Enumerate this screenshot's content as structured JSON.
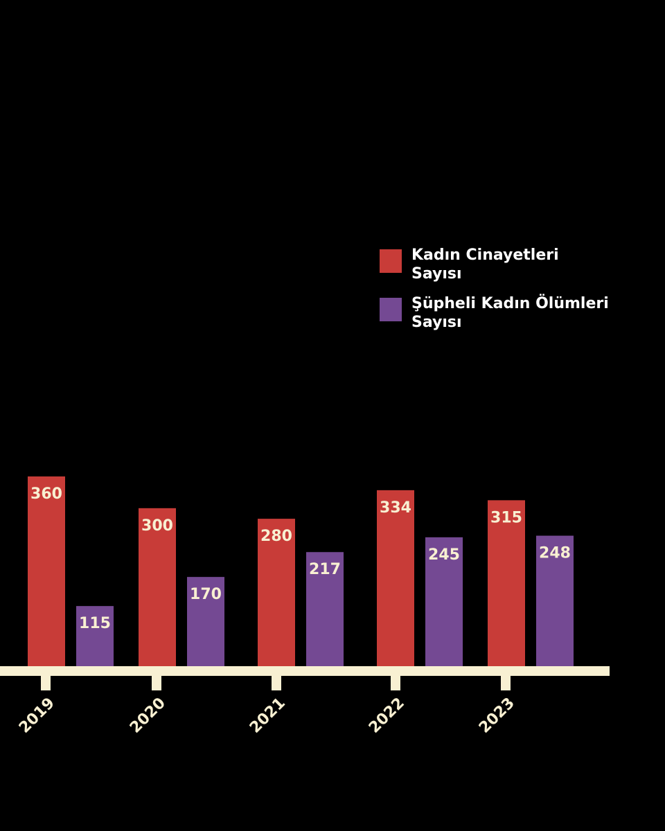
{
  "chart_data": {
    "type": "bar",
    "title": "",
    "xlabel": "",
    "ylabel": "",
    "categories": [
      "2019",
      "2020",
      "2021",
      "2022",
      "2023"
    ],
    "series": [
      {
        "name": "Kadın Cinayetleri Sayısı",
        "name_lines": [
          "Kadın Cinayetleri",
          "Sayısı"
        ],
        "color": "#c83c38",
        "values": [
          360,
          300,
          280,
          334,
          315
        ]
      },
      {
        "name": "Şüpheli Kadın Ölümleri Sayısı",
        "name_lines": [
          "Şüpheli Kadın Ölümleri",
          "Sayısı"
        ],
        "color": "#744993",
        "values": [
          115,
          170,
          217,
          245,
          248
        ]
      }
    ],
    "ylim": [
      0,
      360
    ],
    "grid": false,
    "legend_position": "top-right"
  },
  "colors": {
    "background": "#000000",
    "axis": "#f8f0d2",
    "value_text": "#f8f0d2",
    "legend_text": "#ffffff"
  }
}
